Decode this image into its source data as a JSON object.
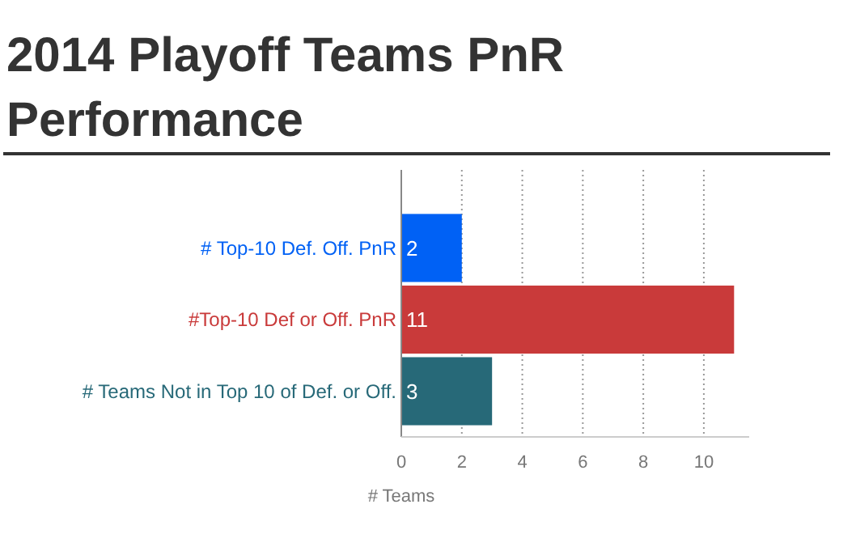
{
  "chart_data": {
    "type": "bar",
    "orientation": "horizontal",
    "title": "2014 Playoff Teams PnR Performance",
    "xlabel": "# Teams",
    "categories": [
      "# Top-10 Def. Off. PnR",
      "#Top-10 Def or Off. PnR",
      "# Teams Not in Top 10 of Def. or Off."
    ],
    "values": [
      2,
      11,
      3
    ],
    "colors": [
      "#0061f5",
      "#c93a3a",
      "#276978"
    ],
    "xlim": [
      0,
      11.5
    ],
    "xticks": [
      0,
      2,
      4,
      6,
      8,
      10
    ],
    "grid": "x",
    "data_labels": true
  }
}
